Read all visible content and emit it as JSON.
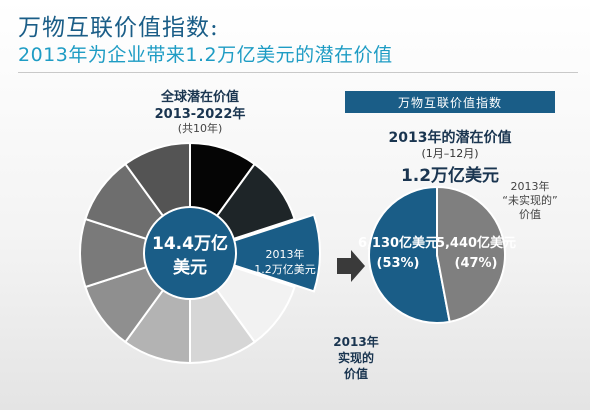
{
  "header": {
    "title": "万物互联价值指数:",
    "subtitle": "2013年为企业带来1.2万亿美元的潜在价值"
  },
  "badge": "万物互联价值指数",
  "global": {
    "line1": "全球潜在价值",
    "line2": "2013-2022年",
    "line3": "(共10年)",
    "center_line1": "14.4万亿",
    "center_line2": "美元",
    "segment_line1": "2013年",
    "segment_line2": "1.2万亿美元"
  },
  "potential_2013": {
    "line1": "2013年的潜在价值",
    "line2": "(1月–12月)",
    "line3": "1.2万亿美元"
  },
  "unrealized_label": {
    "line1": "2013年",
    "line2": "“未实现的”",
    "line3": "价值"
  },
  "realized_label": {
    "line1": "2013年",
    "line2": "实现的",
    "line3": "价值"
  },
  "chart_data": [
    {
      "type": "pie",
      "title": "全球潜在价值 2013-2022年",
      "categories": [
        "2013年",
        "",
        "",
        "",
        "",
        "",
        "",
        "",
        "",
        ""
      ],
      "values": [
        1,
        1,
        1,
        1,
        1,
        1,
        1,
        1,
        1,
        1
      ],
      "total_label": "14.4万亿美元",
      "highlight_label": "1.2万亿美元",
      "colors": [
        "#1a5d87",
        "#f2f2f2",
        "#d6d6d6",
        "#b3b3b3",
        "#8f8f8f",
        "#7a7a7a",
        "#6e6e6e",
        "#545454",
        "#050505",
        "#1e2528"
      ]
    },
    {
      "type": "pie",
      "title": "2013年的潜在价值",
      "categories": [
        "2013年实现的价值",
        "2013年“未实现的”价值"
      ],
      "values": [
        6130,
        5440
      ],
      "value_labels": [
        "6,130亿美元",
        "5,440亿美元"
      ],
      "percent_labels": [
        "(53%)",
        "(47%)"
      ],
      "colors": [
        "#1a5d87",
        "#7f7f7f"
      ]
    }
  ]
}
